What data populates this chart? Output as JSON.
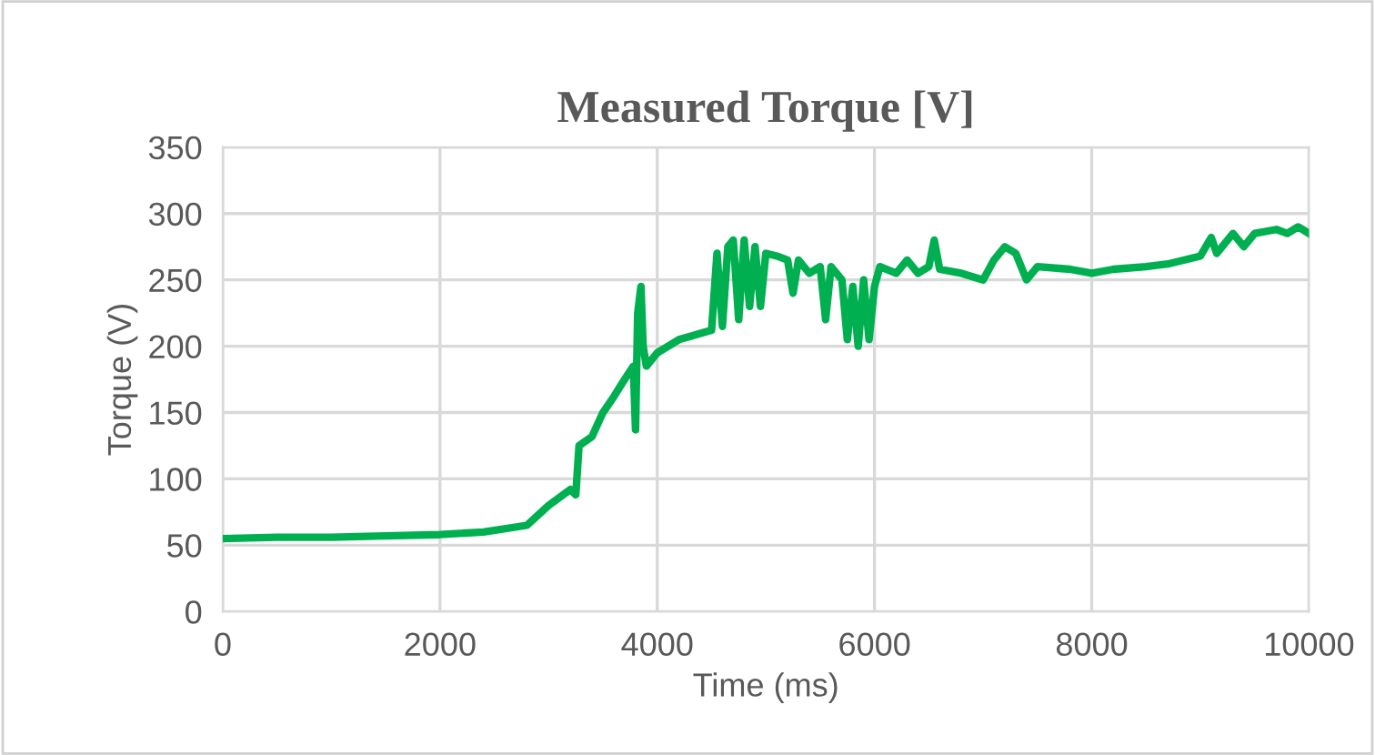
{
  "chart_data": {
    "type": "line",
    "title": "Measured Torque [V]",
    "xlabel": "Time (ms)",
    "ylabel": "Torque (V)",
    "xlim": [
      0,
      10000
    ],
    "xticks": [
      0,
      2000,
      4000,
      6000,
      8000,
      10000
    ],
    "ylim": [
      0,
      350
    ],
    "yticks": [
      0,
      50,
      100,
      150,
      200,
      250,
      300,
      350
    ],
    "grid": true,
    "legend": false,
    "series": [
      {
        "color": "#00b050",
        "x": [
          0,
          500,
          1000,
          1500,
          2000,
          2400,
          2800,
          3000,
          3200,
          3250,
          3280,
          3400,
          3500,
          3600,
          3700,
          3780,
          3800,
          3820,
          3850,
          3870,
          3900,
          4000,
          4200,
          4500,
          4550,
          4600,
          4650,
          4700,
          4750,
          4800,
          4850,
          4900,
          4950,
          5000,
          5100,
          5200,
          5250,
          5300,
          5400,
          5500,
          5550,
          5600,
          5700,
          5750,
          5800,
          5850,
          5900,
          5950,
          6000,
          6050,
          6200,
          6300,
          6400,
          6500,
          6550,
          6600,
          6800,
          7000,
          7100,
          7200,
          7300,
          7400,
          7500,
          7800,
          8000,
          8200,
          8500,
          8700,
          9000,
          9100,
          9150,
          9300,
          9400,
          9500,
          9700,
          9800,
          9900,
          10000
        ],
        "values": [
          55,
          56,
          56,
          57,
          58,
          60,
          65,
          80,
          92,
          88,
          125,
          132,
          150,
          162,
          175,
          185,
          137,
          225,
          245,
          200,
          185,
          195,
          205,
          212,
          270,
          215,
          275,
          280,
          220,
          280,
          230,
          275,
          230,
          270,
          268,
          265,
          240,
          265,
          255,
          260,
          220,
          260,
          250,
          205,
          245,
          200,
          250,
          205,
          245,
          260,
          255,
          265,
          255,
          260,
          280,
          258,
          255,
          250,
          265,
          275,
          270,
          250,
          260,
          258,
          255,
          258,
          260,
          262,
          268,
          282,
          270,
          285,
          275,
          285,
          288,
          285,
          290,
          285
        ]
      }
    ]
  }
}
